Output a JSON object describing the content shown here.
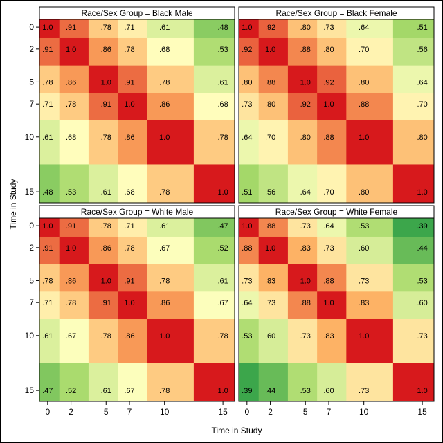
{
  "figure": {
    "xlabel": "Time in Study",
    "ylabel": "Time in Study",
    "colors": [
      "#1a9641",
      "#a6d96a",
      "#ffffbf",
      "#fdae61",
      "#d7191c"
    ]
  },
  "chart_data": {
    "type": "heatmap",
    "times": [
      0,
      2,
      5,
      7,
      10,
      15
    ],
    "tick_labels": [
      "0",
      "2",
      "5",
      "7",
      "10",
      "15"
    ],
    "xlim": [
      -0.7,
      16
    ],
    "ylim": [
      -0.7,
      16
    ],
    "color_range": [
      0.35,
      1.0
    ],
    "panels": [
      {
        "title": "Race/Sex Group = Black Male",
        "labels": [
          [
            "1.0",
            ".91",
            ".78",
            ".71",
            ".61",
            ".48"
          ],
          [
            ".91",
            "1.0",
            ".86",
            ".78",
            ".68",
            ".53"
          ],
          [
            ".78",
            ".86",
            "1.0",
            ".91",
            ".78",
            ".61"
          ],
          [
            ".71",
            ".78",
            ".91",
            "1.0",
            ".86",
            ".68"
          ],
          [
            ".61",
            ".68",
            ".78",
            ".86",
            "1.0",
            ".78"
          ],
          [
            ".48",
            ".53",
            ".61",
            ".68",
            ".78",
            "1.0"
          ]
        ]
      },
      {
        "title": "Race/Sex Group = Black Female",
        "labels": [
          [
            "1.0",
            ".92",
            ".80",
            ".73",
            ".64",
            ".51"
          ],
          [
            ".92",
            "1.0",
            ".88",
            ".80",
            ".70",
            ".56"
          ],
          [
            ".80",
            ".88",
            "1.0",
            ".92",
            ".80",
            ".64"
          ],
          [
            ".73",
            ".80",
            ".92",
            "1.0",
            ".88",
            ".70"
          ],
          [
            ".64",
            ".70",
            ".80",
            ".88",
            "1.0",
            ".80"
          ],
          [
            ".51",
            ".56",
            ".64",
            ".70",
            ".80",
            "1.0"
          ]
        ]
      },
      {
        "title": "Race/Sex Group = White Male",
        "labels": [
          [
            "1.0",
            ".91",
            ".78",
            ".71",
            ".61",
            ".47"
          ],
          [
            ".91",
            "1.0",
            ".86",
            ".78",
            ".67",
            ".52"
          ],
          [
            ".78",
            ".86",
            "1.0",
            ".91",
            ".78",
            ".61"
          ],
          [
            ".71",
            ".78",
            ".91",
            "1.0",
            ".86",
            ".67"
          ],
          [
            ".61",
            ".67",
            ".78",
            ".86",
            "1.0",
            ".78"
          ],
          [
            ".47",
            ".52",
            ".61",
            ".67",
            ".78",
            "1.0"
          ]
        ]
      },
      {
        "title": "Race/Sex Group = White Female",
        "labels": [
          [
            "1.0",
            ".88",
            ".73",
            ".64",
            ".53",
            ".39"
          ],
          [
            ".88",
            "1.0",
            ".83",
            ".73",
            ".60",
            ".44"
          ],
          [
            ".73",
            ".83",
            "1.0",
            ".88",
            ".73",
            ".53"
          ],
          [
            ".64",
            ".73",
            ".88",
            "1.0",
            ".83",
            ".60"
          ],
          [
            ".53",
            ".60",
            ".73",
            ".83",
            "1.0",
            ".73"
          ],
          [
            ".39",
            ".44",
            ".53",
            ".60",
            ".73",
            "1.0"
          ]
        ]
      }
    ]
  }
}
